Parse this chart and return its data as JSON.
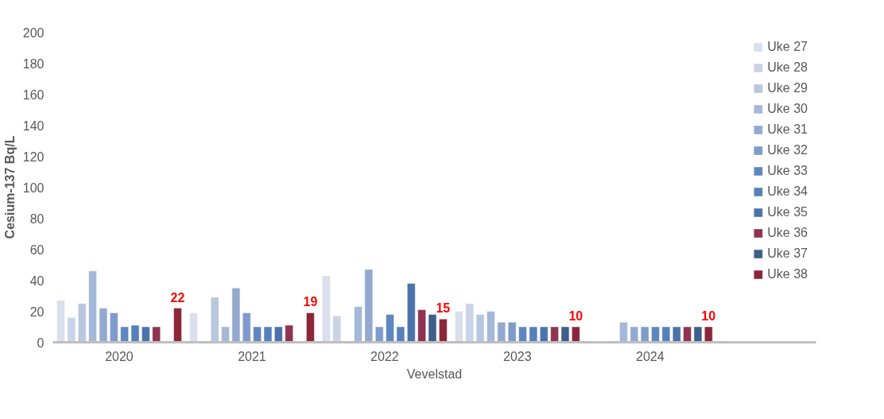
{
  "chart_data": {
    "type": "bar",
    "xlabel": "Vevelstad",
    "ylabel": "Cesium-137 Bq/L",
    "categories": [
      "2020",
      "2021",
      "2022",
      "2023",
      "2024"
    ],
    "ylim": [
      0,
      200
    ],
    "yticks": [
      0,
      20,
      40,
      60,
      80,
      100,
      120,
      140,
      160,
      180,
      200
    ],
    "grid": false,
    "legend": "top right",
    "series": [
      {
        "name": "Uke 27",
        "color": "#d9dfec",
        "values": [
          27,
          19,
          43,
          20,
          null
        ]
      },
      {
        "name": "Uke 28",
        "color": "#c9d3e6",
        "values": [
          16,
          null,
          17,
          25,
          null
        ]
      },
      {
        "name": "Uke 29",
        "color": "#b8c6df",
        "values": [
          25,
          29,
          null,
          18,
          null
        ]
      },
      {
        "name": "Uke 30",
        "color": "#a6b8d8",
        "values": [
          46,
          10,
          23,
          20,
          13
        ]
      },
      {
        "name": "Uke 31",
        "color": "#93a9d0",
        "values": [
          22,
          35,
          47,
          13,
          10
        ]
      },
      {
        "name": "Uke 32",
        "color": "#7f9bcb",
        "values": [
          19,
          19,
          10,
          13,
          10
        ]
      },
      {
        "name": "Uke 33",
        "color": "#5f86c0",
        "values": [
          10,
          10,
          18,
          10,
          10
        ]
      },
      {
        "name": "Uke 34",
        "color": "#5580bb",
        "values": [
          11,
          10,
          10,
          10,
          10
        ]
      },
      {
        "name": "Uke 35",
        "color": "#4b72aa",
        "values": [
          10,
          10,
          38,
          10,
          10
        ]
      },
      {
        "name": "Uke 36",
        "color": "#8e3350",
        "values": [
          10,
          11,
          21,
          10,
          10
        ]
      },
      {
        "name": "Uke 37",
        "color": "#3e5f8a",
        "values": [
          null,
          null,
          18,
          10,
          10
        ]
      },
      {
        "name": "Uke 38",
        "color": "#8c2639",
        "values": [
          22,
          19,
          15,
          10,
          10
        ],
        "value_labels": [
          "22",
          "19",
          "15",
          "10",
          "10"
        ]
      }
    ]
  }
}
